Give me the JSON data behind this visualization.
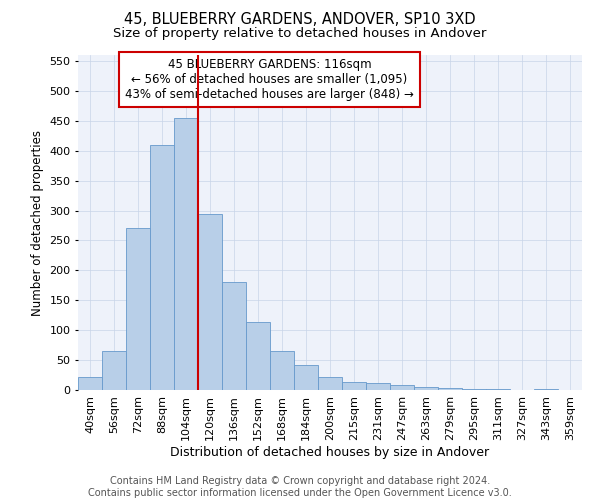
{
  "title1": "45, BLUEBERRY GARDENS, ANDOVER, SP10 3XD",
  "title2": "Size of property relative to detached houses in Andover",
  "xlabel": "Distribution of detached houses by size in Andover",
  "ylabel": "Number of detached properties",
  "categories": [
    "40sqm",
    "56sqm",
    "72sqm",
    "88sqm",
    "104sqm",
    "120sqm",
    "136sqm",
    "152sqm",
    "168sqm",
    "184sqm",
    "200sqm",
    "215sqm",
    "231sqm",
    "247sqm",
    "263sqm",
    "279sqm",
    "295sqm",
    "311sqm",
    "327sqm",
    "343sqm",
    "359sqm"
  ],
  "values": [
    22,
    65,
    270,
    410,
    455,
    295,
    180,
    113,
    65,
    42,
    22,
    14,
    12,
    8,
    5,
    4,
    2,
    1,
    0,
    1,
    0
  ],
  "bar_color": "#b8cfe8",
  "bar_edge_color": "#6699cc",
  "vline_color": "#cc0000",
  "vline_x_index": 4.5,
  "annotation_text": "45 BLUEBERRY GARDENS: 116sqm\n← 56% of detached houses are smaller (1,095)\n43% of semi-detached houses are larger (848) →",
  "annotation_box_facecolor": "#ffffff",
  "annotation_box_edgecolor": "#cc0000",
  "ylim": [
    0,
    560
  ],
  "yticks": [
    0,
    50,
    100,
    150,
    200,
    250,
    300,
    350,
    400,
    450,
    500,
    550
  ],
  "plot_bg_color": "#eef2fa",
  "footer_text": "Contains HM Land Registry data © Crown copyright and database right 2024.\nContains public sector information licensed under the Open Government Licence v3.0.",
  "title1_fontsize": 10.5,
  "title2_fontsize": 9.5,
  "xlabel_fontsize": 9,
  "ylabel_fontsize": 8.5,
  "tick_fontsize": 8,
  "annotation_fontsize": 8.5,
  "footer_fontsize": 7
}
